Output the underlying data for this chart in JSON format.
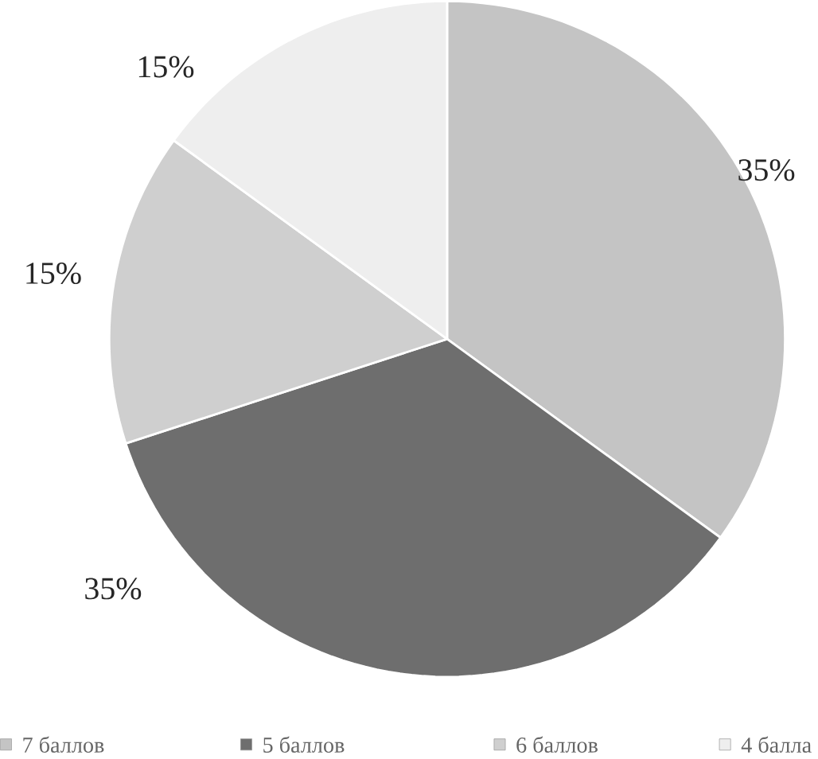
{
  "chart_data": {
    "type": "pie",
    "categories": [
      "7 баллов",
      "5 баллов",
      "6 баллов",
      "4 балла"
    ],
    "values": [
      35,
      35,
      15,
      15
    ],
    "colors": [
      "#c4c4c4",
      "#6e6e6e",
      "#cfcfcf",
      "#eeeeee"
    ],
    "value_labels": [
      "35%",
      "35%",
      "15%",
      "15%"
    ],
    "legend": "bottom"
  }
}
